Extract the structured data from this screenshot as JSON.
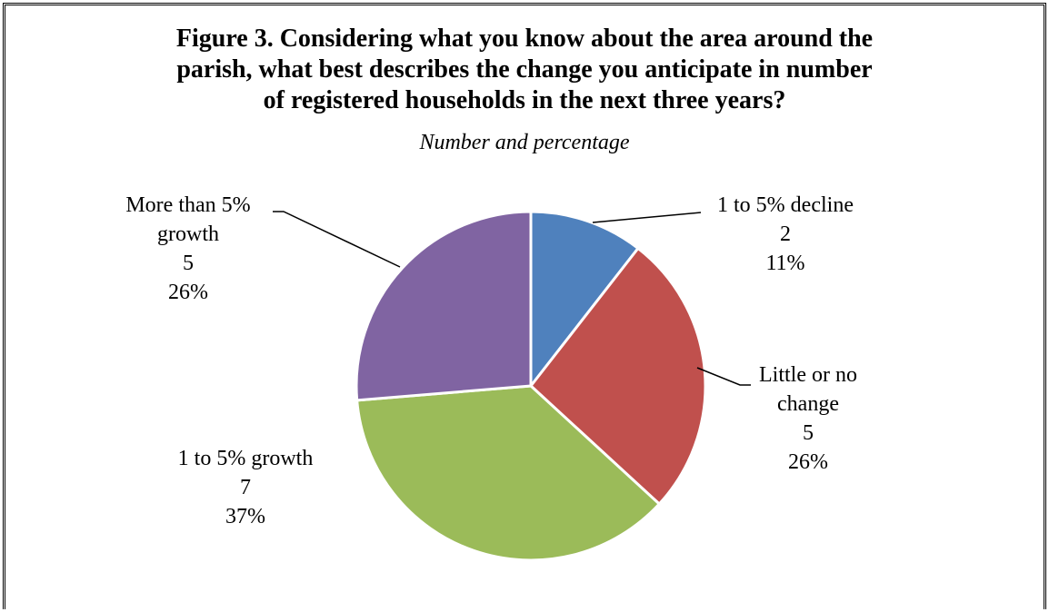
{
  "chart_data": {
    "type": "pie",
    "title_lines": [
      "Figure 3. Considering what you know about the area around the",
      "parish, what best describes the change you anticipate in number",
      "of registered households in the next three years?"
    ],
    "subtitle": "Number and percentage",
    "slices": [
      {
        "label_lines": [
          "1 to 5% decline"
        ],
        "value": 2,
        "value_label": "2",
        "percent_label": "11%",
        "color": "#4F81BD"
      },
      {
        "label_lines": [
          "Little or no",
          "change"
        ],
        "value": 5,
        "value_label": "5",
        "percent_label": "26%",
        "color": "#C0504D"
      },
      {
        "label_lines": [
          "1 to 5% growth"
        ],
        "value": 7,
        "value_label": "7",
        "percent_label": "37%",
        "color": "#9BBB59"
      },
      {
        "label_lines": [
          "More than 5%",
          "growth"
        ],
        "value": 5,
        "value_label": "5",
        "percent_label": "26%",
        "color": "#8064A2"
      }
    ]
  }
}
